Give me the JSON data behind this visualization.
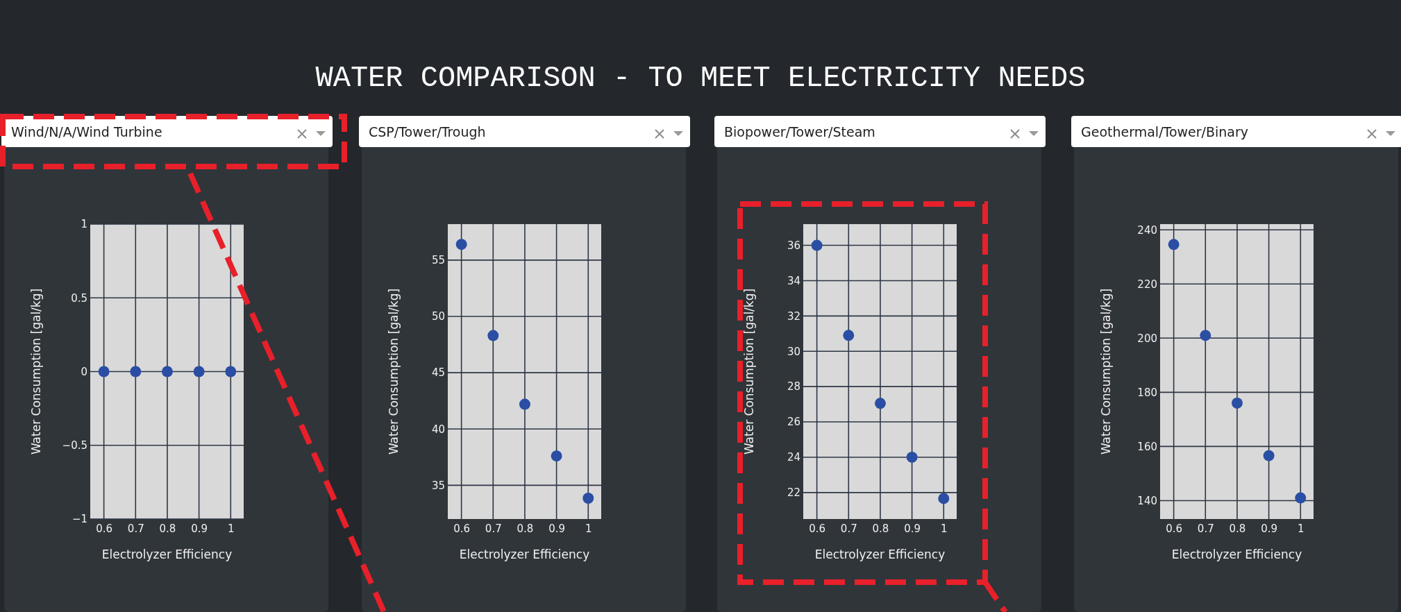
{
  "chart_data": [
    {
      "type": "other",
      "title": "WATER COMPARISON - TO MEET ELECTRICITY NEEDS"
    },
    {
      "type": "scatter",
      "title": "Wind/N/A/Wind Turbine",
      "xlabel": "Electrolyzer Efficiency",
      "ylabel": "Water Consumption [gal/kg]",
      "x": [
        0.6,
        0.7,
        0.8,
        0.9,
        1
      ],
      "series": [
        {
          "color": "#2a4ea3",
          "values": [
            0,
            0,
            0,
            0,
            0
          ]
        }
      ],
      "xlim": [
        0.557,
        1.041
      ],
      "xticks": [
        0.6,
        0.7,
        0.8,
        0.9,
        1
      ],
      "ylim": [
        -1,
        1
      ],
      "yticks": [
        -1,
        -0.5,
        0,
        0.5,
        1
      ],
      "grid": true,
      "marker": "circle"
    },
    {
      "type": "scatter",
      "title": "CSP/Tower/Trough",
      "xlabel": "Electrolyzer Efficiency",
      "ylabel": "Water Consumption [gal/kg]",
      "x": [
        0.6,
        0.7,
        0.8,
        0.9,
        1
      ],
      "series": [
        {
          "color": "#2a4ea3",
          "values": [
            56.4,
            48.3,
            42.2,
            37.6,
            33.85
          ]
        }
      ],
      "xlim": [
        0.557,
        1.041
      ],
      "xticks": [
        0.6,
        0.7,
        0.8,
        0.9,
        1
      ],
      "ylim": [
        32.0,
        58.2
      ],
      "yticks": [
        35,
        40,
        45,
        50,
        55
      ],
      "grid": true,
      "marker": "circle"
    },
    {
      "type": "scatter",
      "title": "Biopower/Tower/Steam",
      "xlabel": "Electrolyzer Efficiency",
      "ylabel": "Water Consumption [gal/kg]",
      "x": [
        0.6,
        0.7,
        0.8,
        0.9,
        1
      ],
      "series": [
        {
          "color": "#2a4ea3",
          "values": [
            36.0,
            30.9,
            27.05,
            24.0,
            21.66
          ]
        }
      ],
      "xlim": [
        0.557,
        1.041
      ],
      "xticks": [
        0.6,
        0.7,
        0.8,
        0.9,
        1
      ],
      "ylim": [
        20.5,
        37.2
      ],
      "yticks": [
        22,
        24,
        26,
        28,
        30,
        32,
        34,
        36
      ],
      "grid": true,
      "marker": "circle"
    },
    {
      "type": "scatter",
      "title": "Geothermal/Tower/Binary",
      "xlabel": "Electrolyzer Efficiency",
      "ylabel": "Water Consumption [gal/kg]",
      "x": [
        0.6,
        0.7,
        0.8,
        0.9,
        1
      ],
      "series": [
        {
          "color": "#2a4ea3",
          "values": [
            234.6,
            201,
            176,
            156.6,
            141
          ]
        }
      ],
      "xlim": [
        0.557,
        1.041
      ],
      "xticks": [
        0.6,
        0.7,
        0.8,
        0.9,
        1
      ],
      "ylim": [
        133.2,
        242.1
      ],
      "yticks": [
        140,
        160,
        180,
        200,
        220,
        240
      ],
      "grid": true,
      "marker": "circle"
    }
  ]
}
